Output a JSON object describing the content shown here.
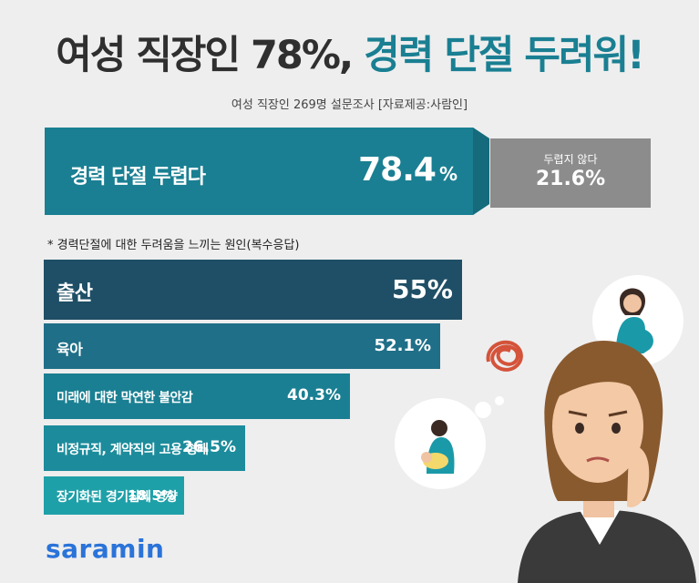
{
  "title": {
    "part1": "여성 직장인 78%,",
    "part2": "경력 단절 두려워!"
  },
  "subtitle": "여성 직장인 269명 설문조사 [자료제공:사람인]",
  "colors": {
    "teal": "#1a7f92",
    "dark_teal": "#1f4f66",
    "gray": "#8c8c8c",
    "logo_blue": "#2a73d9"
  },
  "chart_data": [
    {
      "type": "bar",
      "orientation": "horizontal",
      "title": "",
      "categories": [
        "경력 단절 두렵다",
        "두렵지 않다"
      ],
      "values": [
        78.4,
        21.6
      ],
      "value_labels": [
        "78.4",
        "21.6%"
      ],
      "unit": "%"
    },
    {
      "type": "bar",
      "orientation": "horizontal",
      "title": "* 경력단절에 대한 두려움을 느끼는 원인(복수응답)",
      "categories": [
        "출산",
        "육아",
        "미래에 대한 막연한 불안감",
        "비정규직, 계약직의 고용 형태",
        "장기화된 경기침체 영향"
      ],
      "values": [
        55,
        52.1,
        40.3,
        26.5,
        18.5
      ],
      "value_labels": [
        "55%",
        "52.1%",
        "40.3%",
        "26.5%",
        "18.5%"
      ],
      "unit": "%"
    }
  ],
  "logo": "saramin"
}
